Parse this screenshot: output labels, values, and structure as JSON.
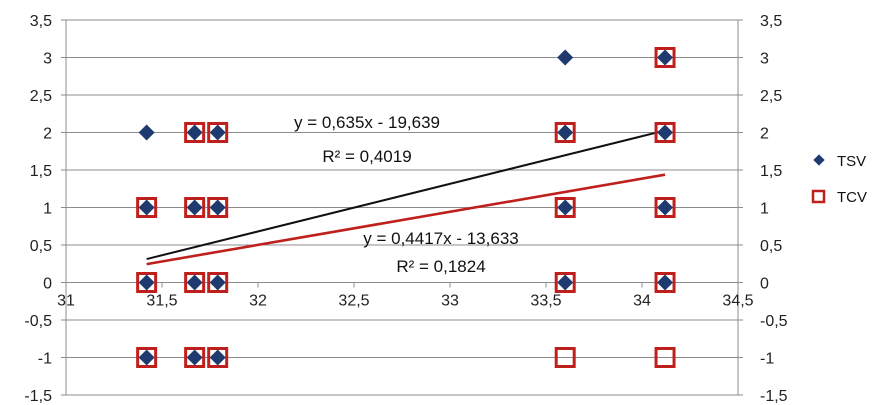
{
  "chart_data": {
    "type": "scatter",
    "xlim": [
      31,
      34.5
    ],
    "ylim": [
      -1.5,
      3.5
    ],
    "x_ticks": [
      "31",
      "31,5",
      "32",
      "32,5",
      "33",
      "33,5",
      "34",
      "34,5"
    ],
    "y_ticks": [
      "-1,5",
      "-1",
      "-0,5",
      "0",
      "0,5",
      "1",
      "1,5",
      "2",
      "2,5",
      "3",
      "3,5"
    ],
    "grid": "horizontal",
    "legend_position": "right",
    "series": [
      {
        "name": "TSV",
        "marker": "diamond",
        "color": "#1f3a6e",
        "points": [
          [
            31.42,
            2
          ],
          [
            31.42,
            1
          ],
          [
            31.42,
            0
          ],
          [
            31.42,
            -1
          ],
          [
            31.67,
            2
          ],
          [
            31.67,
            1
          ],
          [
            31.67,
            0
          ],
          [
            31.67,
            -1
          ],
          [
            31.79,
            2
          ],
          [
            31.79,
            1
          ],
          [
            31.79,
            0
          ],
          [
            31.79,
            -1
          ],
          [
            33.6,
            3
          ],
          [
            33.6,
            2
          ],
          [
            33.6,
            1
          ],
          [
            33.6,
            0
          ],
          [
            34.12,
            3
          ],
          [
            34.12,
            2
          ],
          [
            34.12,
            1
          ],
          [
            34.12,
            0
          ]
        ],
        "trendline": {
          "slope": 0.635,
          "intercept": -19.639,
          "x_range": [
            31.42,
            34.12
          ],
          "color": "#111111",
          "equation": "y = 0,635x - 19,639",
          "r2": "R² = 0,4019"
        }
      },
      {
        "name": "TCV",
        "marker": "square-open",
        "color": "#c0201c",
        "points": [
          [
            31.42,
            1
          ],
          [
            31.42,
            0
          ],
          [
            31.42,
            -1
          ],
          [
            31.67,
            2
          ],
          [
            31.67,
            1
          ],
          [
            31.67,
            0
          ],
          [
            31.67,
            -1
          ],
          [
            31.79,
            2
          ],
          [
            31.79,
            1
          ],
          [
            31.79,
            0
          ],
          [
            31.79,
            -1
          ],
          [
            33.6,
            2
          ],
          [
            33.6,
            1
          ],
          [
            33.6,
            0
          ],
          [
            33.6,
            -1
          ],
          [
            34.12,
            3
          ],
          [
            34.12,
            2
          ],
          [
            34.12,
            1
          ],
          [
            34.12,
            0
          ],
          [
            34.12,
            -1
          ]
        ],
        "trendline": {
          "slope": 0.4417,
          "intercept": -13.633,
          "x_range": [
            31.42,
            34.12
          ],
          "color": "#c0201c",
          "equation": "y = 0,4417x - 13,633",
          "r2": "R² = 0,1824"
        }
      }
    ]
  }
}
